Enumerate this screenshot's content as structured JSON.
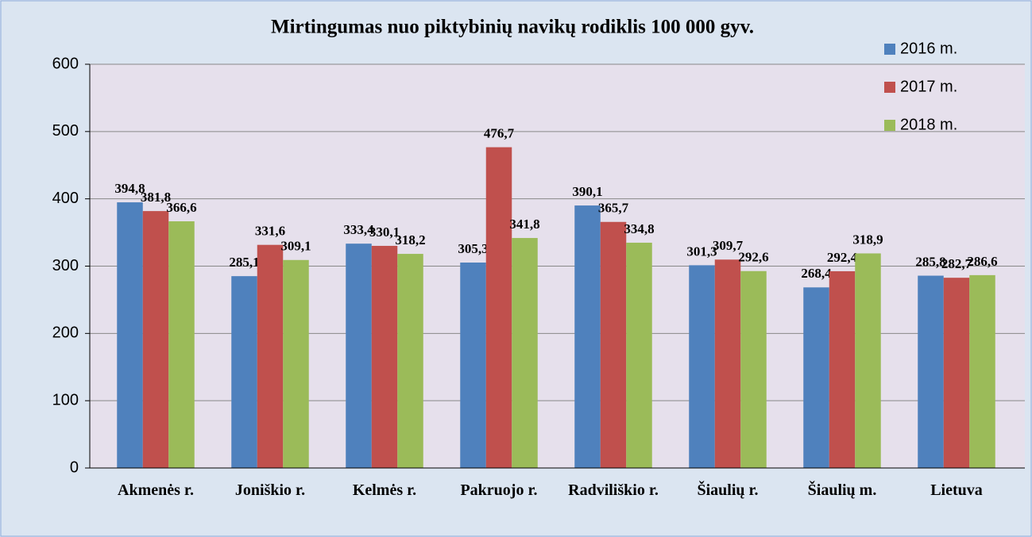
{
  "chart_data": {
    "type": "bar",
    "title": "Mirtingumas nuo piktybinių navikų rodiklis 100 000 gyv.",
    "categories": [
      "Akmenės r.",
      "Joniškio r.",
      "Kelmės r.",
      "Pakruojo r.",
      "Radviliškio r.",
      "Šiaulių r.",
      "Šiaulių m.",
      "Lietuva"
    ],
    "series": [
      {
        "name": "2016 m.",
        "color": "#4f81bd",
        "values": [
          394.8,
          285.1,
          333.4,
          305.3,
          390.1,
          301.3,
          268.4,
          285.8
        ],
        "value_labels": [
          "394,8",
          "285,1",
          "333,4",
          "305,3",
          "390,1",
          "301,3",
          "268,4",
          "285,8"
        ]
      },
      {
        "name": "2017 m.",
        "color": "#c0504d",
        "values": [
          381.8,
          331.6,
          330.1,
          476.7,
          365.7,
          309.7,
          292.4,
          282.7
        ],
        "value_labels": [
          "381,8",
          "331,6",
          "330,1",
          "476,7",
          "365,7",
          "309,7",
          "292,4",
          "282,7"
        ]
      },
      {
        "name": "2018 m.",
        "color": "#9bbb59",
        "values": [
          366.6,
          309.1,
          318.2,
          341.8,
          334.8,
          292.6,
          318.9,
          286.6
        ],
        "value_labels": [
          "366,6",
          "309,1",
          "318,2",
          "341,8",
          "334,8",
          "292,6",
          "318,9",
          "286,6"
        ]
      }
    ],
    "ylim": [
      0,
      600
    ],
    "yticks": [
      0,
      100,
      200,
      300,
      400,
      500,
      600
    ],
    "grid": true,
    "legend": "top-right"
  }
}
